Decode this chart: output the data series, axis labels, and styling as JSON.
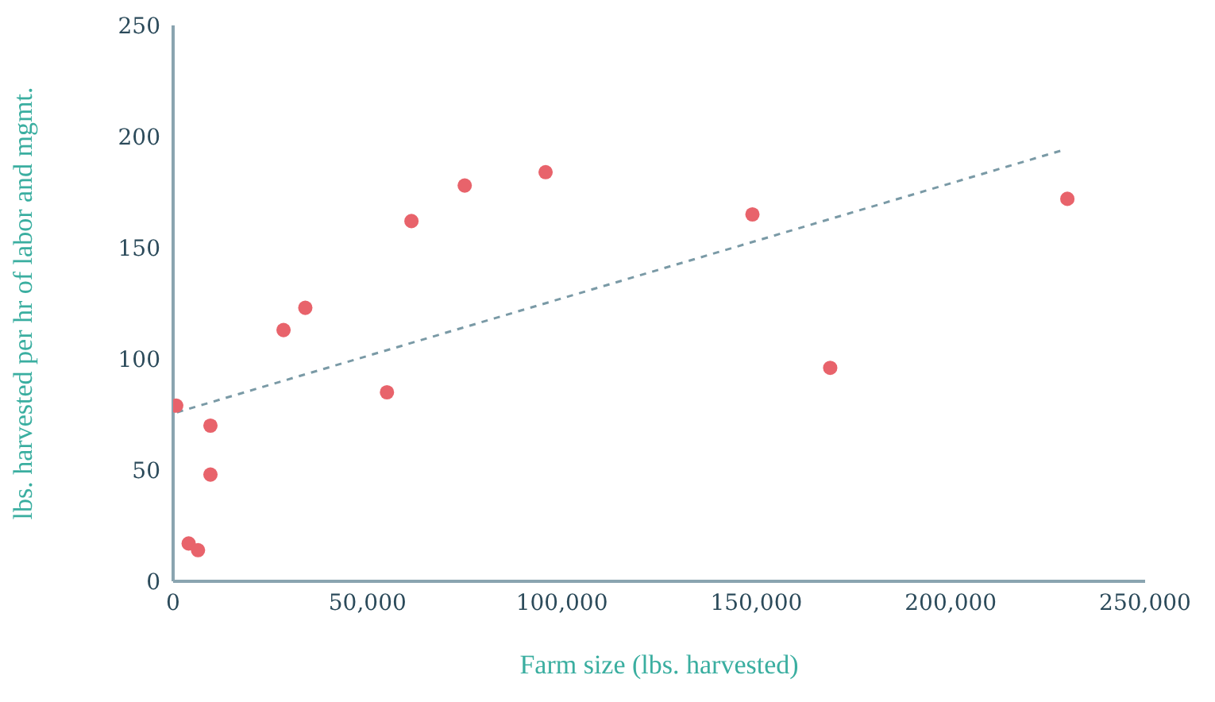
{
  "chart_data": {
    "type": "scatter",
    "xlabel": "Farm size (lbs. harvested)",
    "ylabel": "lbs. harvested per hr of labor and mgmt.",
    "xlim": [
      0,
      250000
    ],
    "ylim": [
      0,
      250
    ],
    "xticks": [
      0,
      {
        "value": 50000,
        "label": "50,000"
      },
      {
        "value": 100000,
        "label": "100,000"
      },
      {
        "value": 150000,
        "label": "150,000"
      },
      {
        "value": 200000,
        "label": "200,000"
      },
      {
        "value": 250000,
        "label": "250,000"
      }
    ],
    "yticks": [
      0,
      50,
      100,
      150,
      200,
      250
    ],
    "grid": false,
    "legend": false,
    "series": [
      {
        "type": "scatter",
        "color": "#e8636b",
        "marker": "circle",
        "x": [
          800,
          4000,
          6400,
          9600,
          9600,
          28400,
          34000,
          55000,
          61300,
          75000,
          95800,
          149000,
          169000,
          230000
        ],
        "values": [
          79,
          17,
          14,
          70,
          48,
          113,
          123,
          85,
          162,
          178,
          184,
          165,
          96,
          172
        ]
      },
      {
        "type": "line",
        "color": "#7a9aa6",
        "line_style": "dashed",
        "marker": "none",
        "x": [
          1000,
          229000
        ],
        "values": [
          76,
          194
        ]
      }
    ]
  }
}
